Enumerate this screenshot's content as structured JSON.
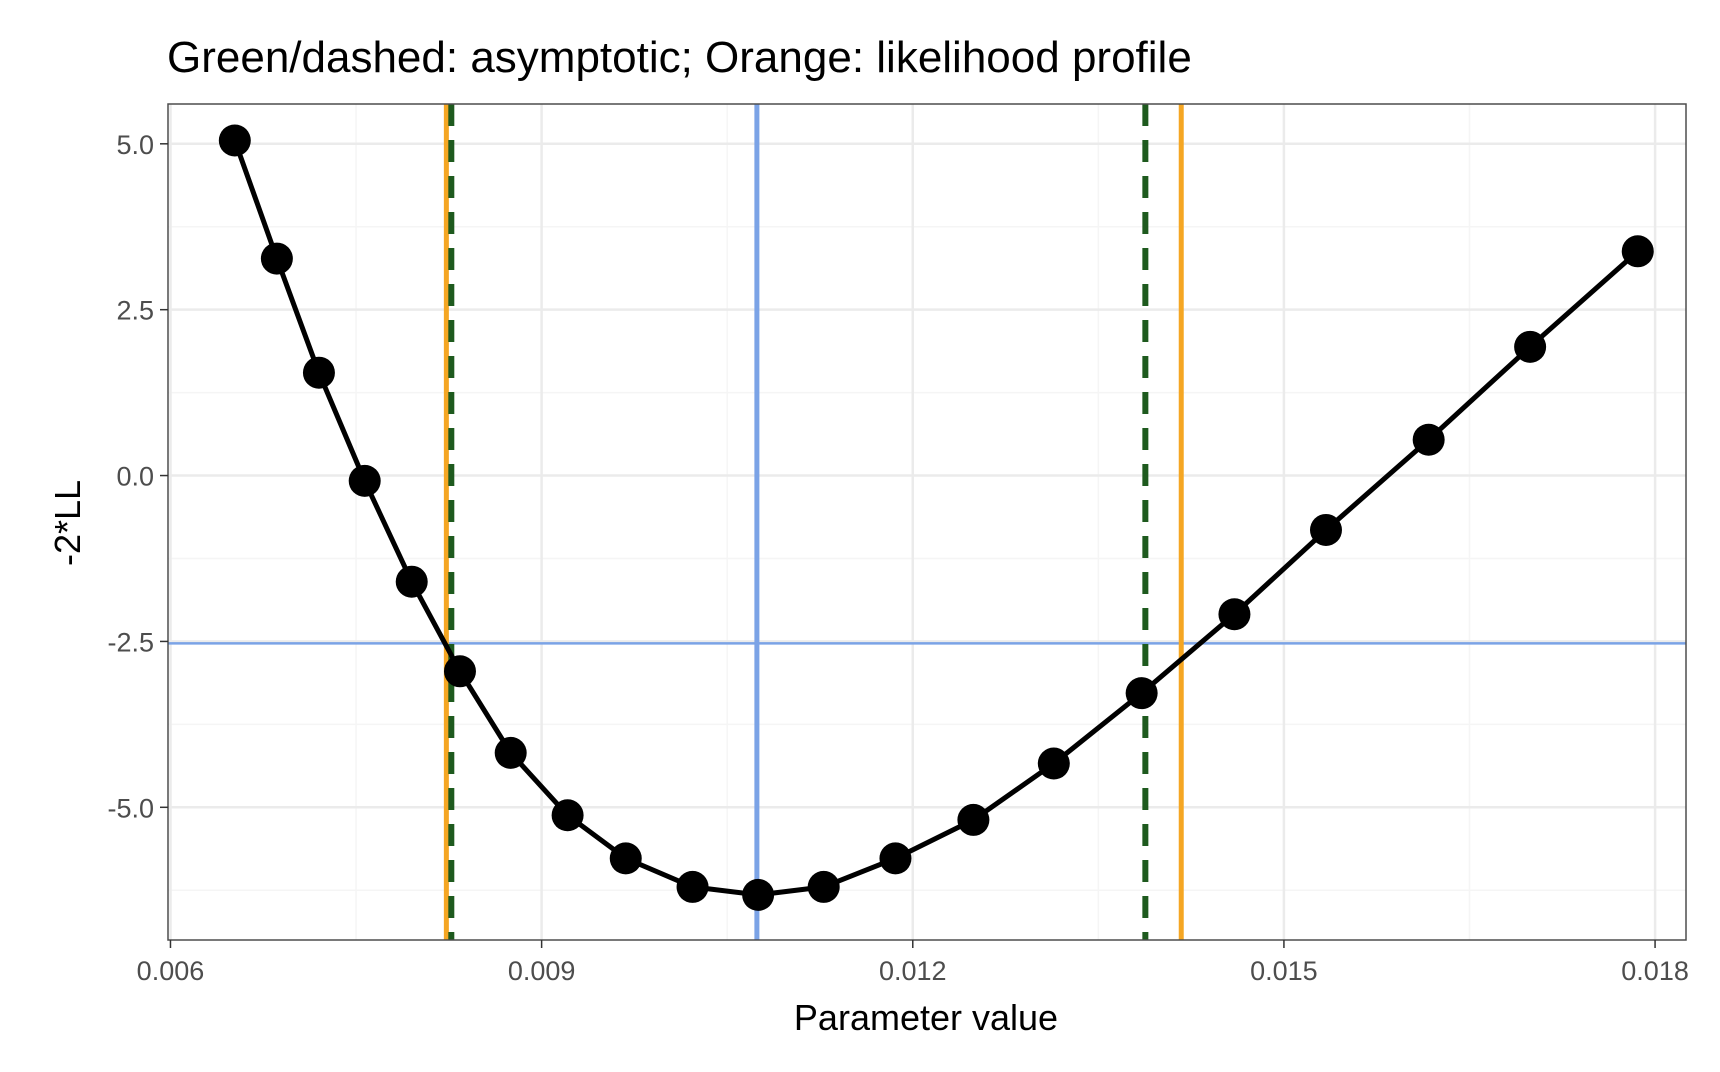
{
  "chart_data": {
    "type": "line",
    "title": "Green/dashed: asymptotic; Orange: likelihood profile",
    "xlabel": "Parameter value",
    "ylabel": "-2*LL",
    "xlim": [
      0.00598,
      0.01825
    ],
    "ylim": [
      -7.0,
      5.6
    ],
    "x_ticks": [
      0.006,
      0.009,
      0.012,
      0.015,
      0.018
    ],
    "x_tick_labels": [
      "0.006",
      "0.009",
      "0.012",
      "0.015",
      "0.018"
    ],
    "y_ticks": [
      5.0,
      2.5,
      0.0,
      -2.5,
      -5.0
    ],
    "y_tick_labels": [
      "5.0",
      "2.5",
      "0.0",
      "-2.5",
      "-5.0"
    ],
    "grid": true,
    "series": [
      {
        "color": "#000000",
        "x": [
          0.00652,
          0.00686,
          0.0072,
          0.00757,
          0.00795,
          0.00834,
          0.00875,
          0.00921,
          0.00968,
          0.01022,
          0.01075,
          0.01128,
          0.01186,
          0.01249,
          0.01314,
          0.01385,
          0.0146,
          0.01534,
          0.01617,
          0.01699,
          0.01786
        ],
        "values": [
          5.05,
          3.27,
          1.55,
          -0.08,
          -1.6,
          -2.95,
          -4.18,
          -5.12,
          -5.77,
          -6.2,
          -6.32,
          -6.2,
          -5.77,
          -5.19,
          -4.34,
          -3.28,
          -2.09,
          -0.82,
          0.54,
          1.94,
          3.38
        ]
      }
    ],
    "reference_lines": {
      "horizontal": [
        {
          "y": -2.53,
          "color": "#7ba3e6",
          "style": "solid"
        }
      ],
      "vertical": [
        {
          "x": 0.01074,
          "color": "#7ba3e6",
          "style": "solid"
        },
        {
          "x": 0.00823,
          "color": "#f5a623",
          "style": "solid"
        },
        {
          "x": 0.01417,
          "color": "#f5a623",
          "style": "solid"
        },
        {
          "x": 0.00827,
          "color": "#1e5a1e",
          "style": "dashed"
        },
        {
          "x": 0.01388,
          "color": "#1e5a1e",
          "style": "dashed"
        }
      ]
    },
    "colors": {
      "panel_border": "#4d4d4d",
      "grid_major": "#ebebeb",
      "grid_minor": "#f5f5f5"
    }
  }
}
